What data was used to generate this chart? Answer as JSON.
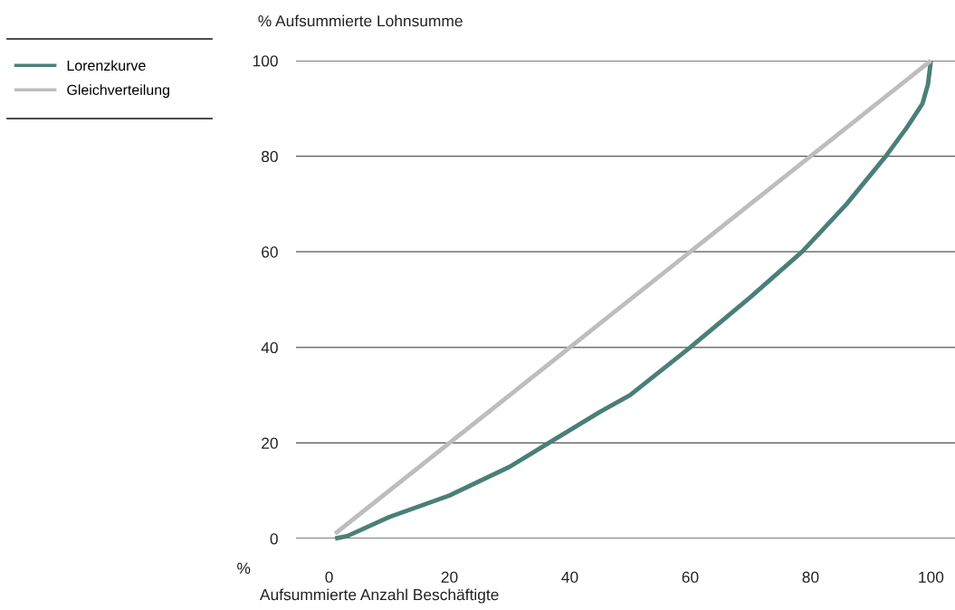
{
  "chart_data": {
    "type": "line",
    "xlabel": "Aufsummierte Anzahl Beschäftigte",
    "ylabel": "% Aufsummierte Lohnsumme",
    "annotations": [
      "%"
    ],
    "series": [
      {
        "name": "Lorenzkurve",
        "color": "#4a7f78",
        "x": [
          1,
          3,
          10,
          20,
          30,
          36.5,
          45,
          50,
          60,
          70,
          78.6,
          86,
          92.5,
          96,
          98.6,
          99.5,
          100
        ],
        "values": [
          0,
          0.5,
          4.5,
          9,
          15,
          20,
          26.5,
          30,
          40,
          50.5,
          60,
          70,
          80,
          86,
          91,
          95,
          100
        ]
      },
      {
        "name": "Gleichverteilung",
        "color": "#bdbdbd",
        "x": [
          1,
          100
        ],
        "values": [
          1,
          100
        ]
      }
    ],
    "xlim": [
      -5.5,
      104
    ],
    "xticks": [
      0,
      20,
      40,
      60,
      80,
      100
    ],
    "ylim": [
      0,
      100
    ],
    "yticks": [
      0,
      20,
      40,
      60,
      80,
      100
    ],
    "grid": "y",
    "legend": "top left"
  }
}
